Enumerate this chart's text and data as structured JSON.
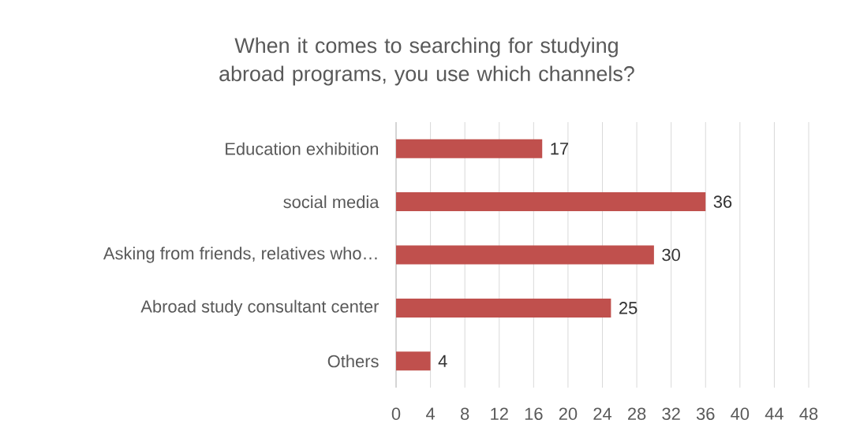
{
  "chart_data": {
    "type": "bar",
    "orientation": "horizontal",
    "title": "When it comes to searching for studying abroad programs, you use which channels?",
    "categories": [
      "Education exhibition",
      "social media",
      "Asking from friends, relatives who…",
      "Abroad study consultant center",
      "Others"
    ],
    "values": [
      17,
      36,
      30,
      25,
      4
    ],
    "color": "#c0504d",
    "xlim": [
      0,
      48
    ],
    "xticks": [
      0,
      4,
      8,
      12,
      16,
      20,
      24,
      28,
      32,
      36,
      40,
      44,
      48
    ],
    "grid": "x",
    "data_labels": true
  }
}
